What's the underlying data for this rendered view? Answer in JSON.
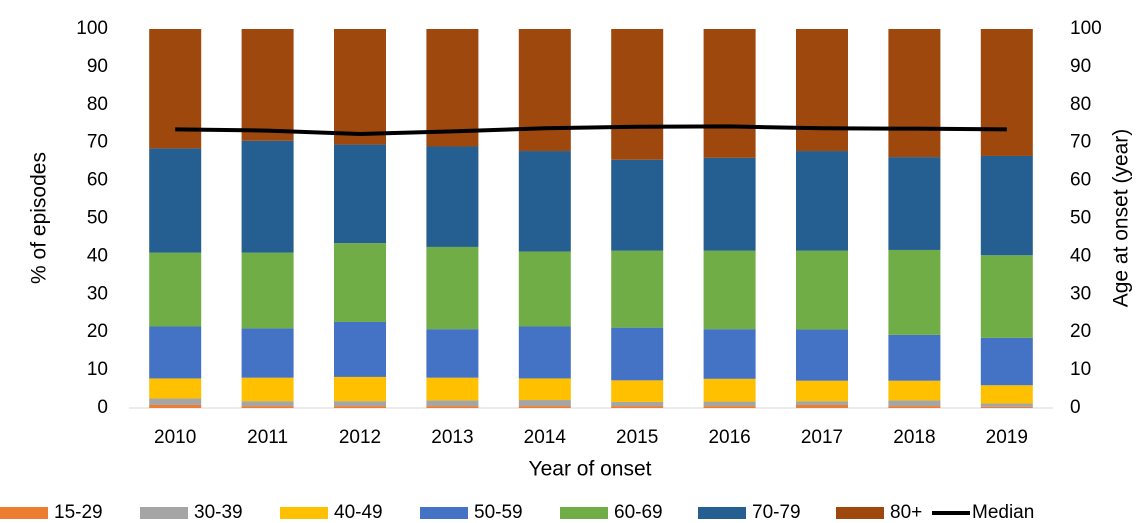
{
  "chart_data": {
    "type": "bar",
    "stacked": true,
    "x_label": "Year of onset",
    "y_label": "% of episodes",
    "y2_label": "Age at onset (year)",
    "categories": [
      "2010",
      "2011",
      "2012",
      "2013",
      "2014",
      "2015",
      "2016",
      "2017",
      "2018",
      "2019"
    ],
    "series": [
      {
        "name": "15-29",
        "color": "#ed7d31",
        "values": [
          0.8,
          0.5,
          0.5,
          0.5,
          0.5,
          0.5,
          0.5,
          0.8,
          0.5,
          0.3
        ]
      },
      {
        "name": "30-39",
        "color": "#a5a5a5",
        "values": [
          1.7,
          1.3,
          1.3,
          1.5,
          1.6,
          1.1,
          1.2,
          1.0,
          1.5,
          0.9
        ]
      },
      {
        "name": "40-49",
        "color": "#ffc000",
        "values": [
          5.3,
          6.2,
          6.4,
          6.0,
          5.7,
          5.7,
          6.0,
          5.4,
          5.2,
          4.8
        ]
      },
      {
        "name": "50-59",
        "color": "#4472c4",
        "values": [
          13.7,
          13.0,
          14.5,
          12.8,
          13.7,
          13.9,
          13.1,
          13.5,
          12.1,
          12.5
        ]
      },
      {
        "name": "60-69",
        "color": "#70ad47",
        "values": [
          19.5,
          20.0,
          20.8,
          21.7,
          19.8,
          20.3,
          20.7,
          20.8,
          22.4,
          21.8
        ]
      },
      {
        "name": "70-79",
        "color": "#255e91",
        "values": [
          27.5,
          29.5,
          26.0,
          26.5,
          26.5,
          24.0,
          24.5,
          26.3,
          24.5,
          26.2
        ]
      },
      {
        "name": "80+",
        "color": "#9e480e",
        "values": [
          31.5,
          29.5,
          30.5,
          31.0,
          32.2,
          34.5,
          34.0,
          32.2,
          33.8,
          33.5
        ]
      },
      {
        "name": "Median",
        "color": "#000000",
        "type": "line",
        "axis": "y2",
        "values": [
          73.5,
          73.2,
          72.3,
          73.0,
          73.8,
          74.2,
          74.3,
          73.8,
          73.7,
          73.5
        ]
      }
    ],
    "ylim": [
      0,
      100
    ],
    "yticks": [
      0,
      10,
      20,
      30,
      40,
      50,
      60,
      70,
      80,
      90,
      100
    ],
    "y2lim": [
      0,
      100
    ],
    "y2ticks": [
      0,
      10,
      20,
      30,
      40,
      50,
      60,
      70,
      80,
      90,
      100
    ],
    "legend": "bottom",
    "grid": false
  }
}
